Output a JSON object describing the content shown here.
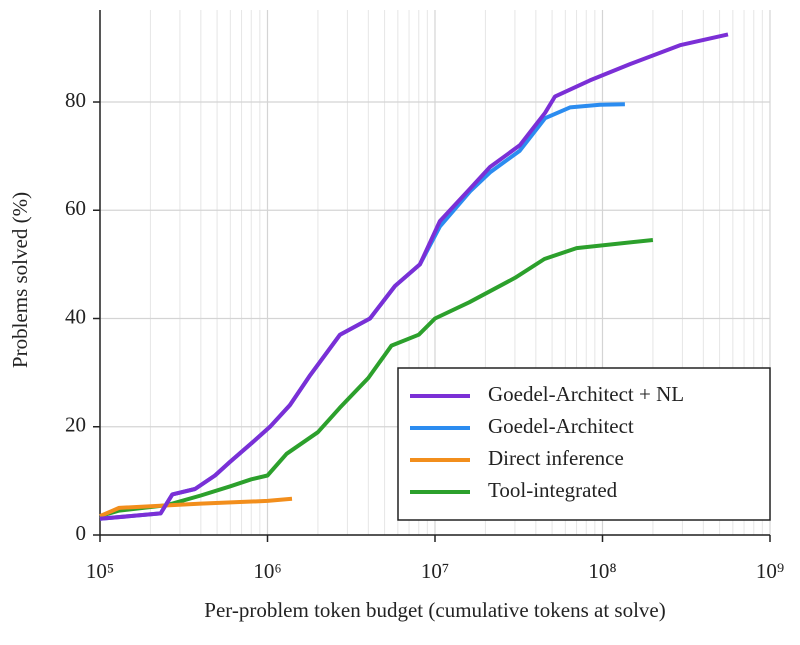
{
  "chart_data": {
    "type": "line",
    "x_label": "Per-problem token budget (cumulative tokens at solve)",
    "y_label": "Problems solved (%)",
    "x_scale": "log",
    "xlim": [
      100000,
      1000000000
    ],
    "xticks": [
      {
        "value": 100000,
        "label": "10⁵"
      },
      {
        "value": 1000000,
        "label": "10⁶"
      },
      {
        "value": 10000000,
        "label": "10⁷"
      },
      {
        "value": 100000000,
        "label": "10⁸"
      },
      {
        "value": 1000000000,
        "label": "10⁹"
      }
    ],
    "ylim": [
      0,
      97
    ],
    "yticks": [
      0,
      20,
      40,
      60,
      80
    ],
    "grid": true,
    "minor_grid": true,
    "legend": "lower right",
    "series": [
      {
        "name": "Goedel-Architect + NL",
        "color": "#7b2fd6",
        "x": [
          100000,
          230000,
          270000,
          369000,
          486000,
          597000,
          841000,
          1035000,
          1360000,
          1795000,
          2710000,
          4090000,
          5770000,
          8130000,
          10700000,
          16200000,
          21300000,
          32100000,
          45400000,
          52000000,
          84100000,
          146000000,
          290000000,
          561000000
        ],
        "values": [
          3,
          4,
          7.5,
          8.5,
          11,
          13.5,
          17.5,
          20,
          24,
          29.5,
          37,
          40,
          46,
          50,
          58,
          64,
          68,
          72,
          78,
          81,
          84,
          87,
          90.5,
          92.5
        ]
      },
      {
        "name": "Goedel-Architect",
        "color": "#2b8cf0",
        "x": [
          100000,
          230000,
          270000,
          369000,
          486000,
          597000,
          841000,
          1035000,
          1360000,
          1795000,
          2710000,
          4090000,
          5770000,
          8130000,
          10700000,
          16200000,
          21300000,
          32100000,
          45400000,
          64000000,
          96600000,
          136000000
        ],
        "values": [
          3,
          4,
          7.5,
          8.5,
          11,
          13.5,
          17.5,
          20,
          24,
          29.5,
          37,
          40,
          46,
          50,
          57,
          63.5,
          67,
          71,
          77,
          79,
          79.5,
          79.6
        ]
      },
      {
        "name": "Direct inference",
        "color": "#f28e1c",
        "x": [
          100000,
          130000,
          400000,
          1000000,
          1400000
        ],
        "values": [
          3.5,
          5,
          5.8,
          6.3,
          6.7
        ]
      },
      {
        "name": "Tool-integrated",
        "color": "#2ca02c",
        "x": [
          100000,
          130000,
          250000,
          400000,
          600000,
          800000,
          1000000,
          1300000,
          2000000,
          2700000,
          4000000,
          5500000,
          8000000,
          10000000,
          16000000,
          30000000,
          45000000,
          70000000,
          200000000
        ],
        "values": [
          3.5,
          4.5,
          5.5,
          7.3,
          9,
          10.3,
          11,
          15,
          19,
          23.5,
          29,
          35,
          37,
          40,
          43,
          47.5,
          51,
          53,
          54.5
        ]
      }
    ]
  }
}
